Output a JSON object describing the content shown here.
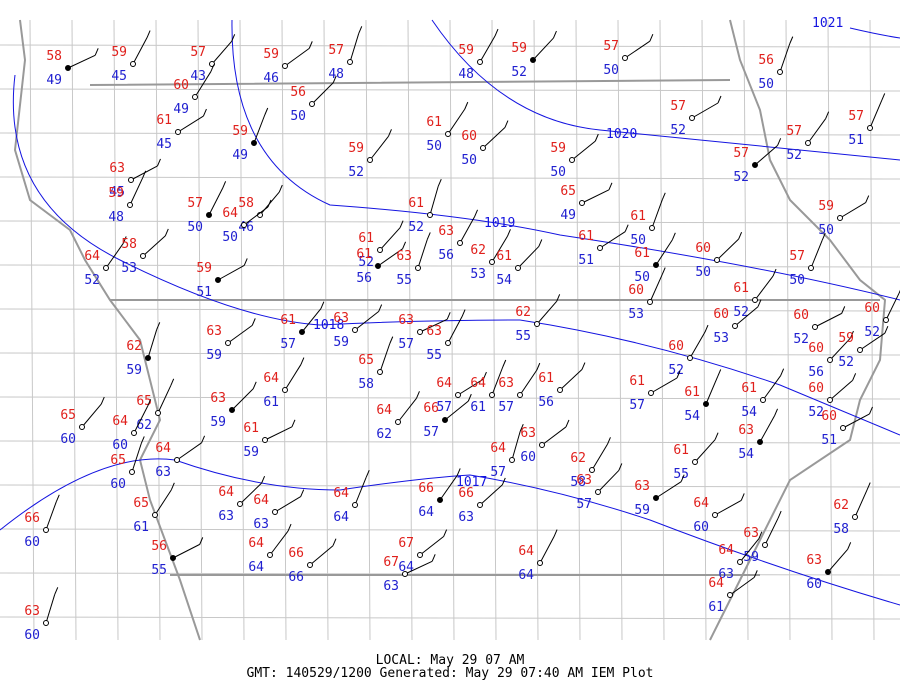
{
  "stations": [
    {
      "temp": 58,
      "dew": 49
    },
    {
      "temp": 59,
      "dew": 45
    },
    {
      "temp": 57,
      "dew": 43
    },
    {
      "temp": 59,
      "dew": 46
    },
    {
      "temp": 57,
      "dew": 48
    },
    {
      "temp": 59,
      "dew": 48
    },
    {
      "temp": 59,
      "dew": 52
    },
    {
      "temp": 57,
      "dew": 50
    },
    {
      "temp": 56,
      "dew": 50
    },
    {
      "temp": 60,
      "dew": 49
    },
    {
      "temp": 56,
      "dew": 50
    },
    {
      "temp": 61,
      "dew": 45
    },
    {
      "temp": 59,
      "dew": 49
    },
    {
      "temp": 61,
      "dew": 50
    },
    {
      "temp": 60,
      "dew": 50
    },
    {
      "temp": 57,
      "dew": 52
    },
    {
      "temp": 57,
      "dew": 51
    },
    {
      "temp": 57,
      "dew": 52
    },
    {
      "temp": 57,
      "dew": 52
    },
    {
      "temp": 63,
      "dew": 45
    },
    {
      "temp": 59,
      "dew": 48
    },
    {
      "temp": 59,
      "dew": 52
    },
    {
      "temp": 59,
      "dew": 50
    },
    {
      "temp": 65,
      "dew": 49
    },
    {
      "temp": 57,
      "dew": 50
    },
    {
      "temp": 58,
      "dew": 46
    },
    {
      "temp": 64,
      "dew": 50
    },
    {
      "temp": 61,
      "dew": 52
    },
    {
      "temp": 63,
      "dew": 56
    },
    {
      "temp": 61,
      "dew": 52
    },
    {
      "temp": 61,
      "dew": 56
    },
    {
      "temp": 63,
      "dew": 55
    },
    {
      "temp": 62,
      "dew": 53
    },
    {
      "temp": 61,
      "dew": 54
    },
    {
      "temp": 61,
      "dew": 51
    },
    {
      "temp": 61,
      "dew": 50
    },
    {
      "temp": 61,
      "dew": 50
    },
    {
      "temp": 60,
      "dew": 50
    },
    {
      "temp": 59,
      "dew": 50
    },
    {
      "temp": 57,
      "dew": 50
    },
    {
      "temp": 64,
      "dew": 52
    },
    {
      "temp": 58,
      "dew": 53
    },
    {
      "temp": 59,
      "dew": 51
    },
    {
      "temp": 60,
      "dew": 53
    },
    {
      "temp": 61,
      "dew": 52
    },
    {
      "temp": 60,
      "dew": 53
    },
    {
      "temp": 60,
      "dew": 52
    },
    {
      "temp": 60,
      "dew": 52
    },
    {
      "temp": 61,
      "dew": 57
    },
    {
      "temp": 63,
      "dew": 59
    },
    {
      "temp": 63,
      "dew": 57
    },
    {
      "temp": 63,
      "dew": 55
    },
    {
      "temp": 62,
      "dew": 55
    },
    {
      "temp": 63,
      "dew": 59
    },
    {
      "temp": 62,
      "dew": 59
    },
    {
      "temp": 60,
      "dew": 52
    },
    {
      "temp": 60,
      "dew": 56
    },
    {
      "temp": 59,
      "dew": 52
    },
    {
      "temp": 65,
      "dew": 58
    },
    {
      "temp": 64,
      "dew": 61
    },
    {
      "temp": 63,
      "dew": 59
    },
    {
      "temp": 64,
      "dew": 57
    },
    {
      "temp": 64,
      "dew": 61
    },
    {
      "temp": 63,
      "dew": 57
    },
    {
      "temp": 61,
      "dew": 56
    },
    {
      "temp": 61,
      "dew": 57
    },
    {
      "temp": 61,
      "dew": 54
    },
    {
      "temp": 61,
      "dew": 54
    },
    {
      "temp": 60,
      "dew": 52
    },
    {
      "temp": 60,
      "dew": 51
    },
    {
      "temp": 65,
      "dew": 62
    },
    {
      "temp": 64,
      "dew": 62
    },
    {
      "temp": 66,
      "dew": 57
    },
    {
      "temp": 61,
      "dew": 59
    },
    {
      "temp": 64,
      "dew": 60
    },
    {
      "temp": 65,
      "dew": 60
    },
    {
      "temp": 63,
      "dew": 60
    },
    {
      "temp": 64,
      "dew": 57
    },
    {
      "temp": 63,
      "dew": 54
    },
    {
      "temp": 61,
      "dew": 55
    },
    {
      "temp": 64,
      "dew": 63
    },
    {
      "temp": 65,
      "dew": 60
    },
    {
      "temp": 62,
      "dew": 58
    },
    {
      "temp": 63,
      "dew": 57
    },
    {
      "temp": 63,
      "dew": 59
    },
    {
      "temp": 66,
      "dew": 60
    },
    {
      "temp": 65,
      "dew": 61
    },
    {
      "temp": 64,
      "dew": 63
    },
    {
      "temp": 64,
      "dew": 63
    },
    {
      "temp": 64,
      "dew": 64
    },
    {
      "temp": 66,
      "dew": 64
    },
    {
      "temp": 66,
      "dew": 63
    },
    {
      "temp": 64,
      "dew": 60
    },
    {
      "temp": 62,
      "dew": 58
    },
    {
      "temp": 64,
      "dew": 64
    },
    {
      "temp": 66,
      "dew": 66
    },
    {
      "temp": 56,
      "dew": 55
    },
    {
      "temp": 63,
      "dew": 59
    },
    {
      "temp": 64,
      "dew": 63
    },
    {
      "temp": 67,
      "dew": 64
    },
    {
      "temp": 67,
      "dew": 63
    },
    {
      "temp": 64,
      "dew": 64
    },
    {
      "temp": 63,
      "dew": 60
    },
    {
      "temp": 64,
      "dew": 61
    },
    {
      "temp": 63,
      "dew": 60
    }
  ],
  "isobars": [
    1021,
    1020,
    1019,
    1018,
    1017
  ],
  "footer": {
    "local": "LOCAL: May 29 07 AM",
    "generated": "GMT: 140529/1200 Generated: May 29 07:40 AM IEM Plot"
  }
}
